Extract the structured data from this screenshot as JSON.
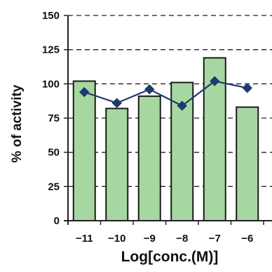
{
  "chart_data": {
    "type": "bar",
    "title": "",
    "xlabel": "Log[conc.(M)]",
    "ylabel": "% of activity",
    "categories": [
      "-11",
      "-10",
      "-9",
      "-8",
      "-7",
      "-6"
    ],
    "ylim": [
      0,
      150
    ],
    "yticks": [
      0,
      25,
      50,
      75,
      100,
      125,
      150
    ],
    "grid": "horizontal-dashed",
    "series": [
      {
        "type": "bar",
        "values": [
          102,
          82,
          91,
          101,
          119,
          83
        ],
        "color": "#a7d7a0"
      },
      {
        "type": "line",
        "values": [
          94,
          86,
          96,
          84,
          102,
          97
        ],
        "color": "#1f3a6e"
      }
    ]
  }
}
